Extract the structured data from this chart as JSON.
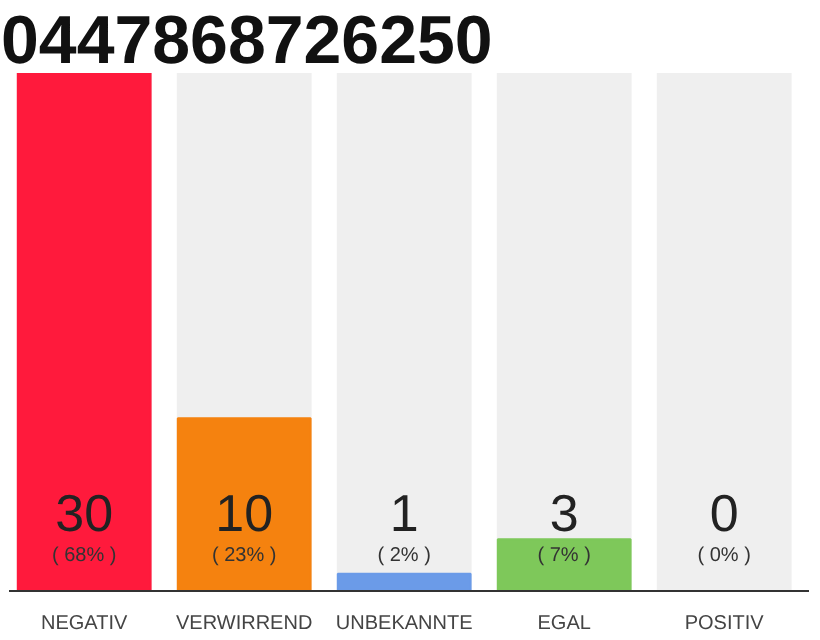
{
  "chart_data": {
    "type": "bar",
    "title": "0447868726250",
    "categories": [
      "NEGATIV",
      "VERWIRREND",
      "UNBEKANNTE",
      "EGAL",
      "POSITIV"
    ],
    "values": [
      30,
      10,
      1,
      3,
      0
    ],
    "colors": [
      "#ff1a3c",
      "#f5820f",
      "#6b9be8",
      "#7ec85a",
      "#d8d8d8"
    ],
    "data_labels": true,
    "annotations": [
      "( 68% )",
      "( 23% )",
      "( 2% )",
      "( 7% )",
      "( 0% )"
    ],
    "grid": false
  }
}
